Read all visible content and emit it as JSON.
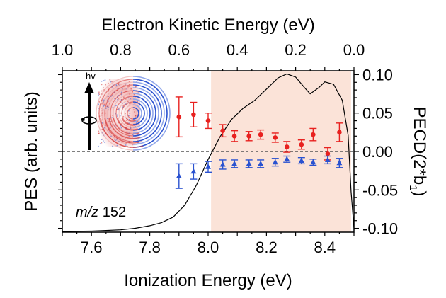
{
  "chart_data": {
    "type": "scatter",
    "title": "",
    "xlabel": "Ionization Energy (eV)",
    "top_xlabel": "Electron Kinetic Energy (eV)",
    "ylabel_left": "PES (arb. units)",
    "ylabel_right_main": "PECD(2*b",
    "ylabel_right_sub": "1",
    "ylabel_right_close": ")",
    "annotation_italic": "m/z",
    "annotation_value": "152",
    "hv_label": "hv",
    "xlim": [
      7.5,
      8.5
    ],
    "x_ticks": [
      "7.6",
      "7.8",
      "8.0",
      "8.2",
      "8.4"
    ],
    "x_tick_values": [
      7.6,
      7.8,
      8.0,
      8.2,
      8.4
    ],
    "top_x_ticks": [
      "1.0",
      "0.8",
      "0.6",
      "0.4",
      "0.2",
      "0.0"
    ],
    "top_x_tick_values": [
      1.0,
      0.8,
      0.6,
      0.4,
      0.2,
      0.0
    ],
    "y_right_lim": [
      -0.105,
      0.105
    ],
    "y_right_ticks": [
      "0.10",
      "0.05",
      "0.00",
      "-0.05",
      "-0.10"
    ],
    "y_right_tick_values": [
      0.1,
      0.05,
      0.0,
      -0.05,
      -0.1
    ],
    "shaded_region": [
      8.01,
      8.49
    ],
    "shade_color": "#fbe3d8",
    "series": [
      {
        "name": "PECD b1 (red)",
        "color": "#e8211f",
        "marker": "circle",
        "x": [
          7.9,
          7.95,
          8.0,
          8.05,
          8.09,
          8.14,
          8.18,
          8.23,
          8.27,
          8.32,
          8.36,
          8.41,
          8.45
        ],
        "y": [
          0.045,
          0.048,
          0.04,
          0.027,
          0.02,
          0.02,
          0.022,
          0.018,
          0.006,
          0.009,
          0.022,
          -0.003,
          0.025
        ],
        "err": [
          0.026,
          0.016,
          0.01,
          0.008,
          0.007,
          0.006,
          0.006,
          0.006,
          0.007,
          0.006,
          0.008,
          0.008,
          0.012
        ]
      },
      {
        "name": "PECD b1 (blue)",
        "color": "#2a52d0",
        "marker": "triangle",
        "x": [
          7.9,
          7.95,
          8.0,
          8.05,
          8.09,
          8.14,
          8.18,
          8.23,
          8.27,
          8.32,
          8.36,
          8.41,
          8.45
        ],
        "y": [
          -0.032,
          -0.026,
          -0.02,
          -0.017,
          -0.016,
          -0.016,
          -0.016,
          -0.014,
          -0.01,
          -0.012,
          -0.014,
          -0.011,
          -0.015
        ],
        "err": [
          0.016,
          0.01,
          0.007,
          0.006,
          0.005,
          0.005,
          0.005,
          0.005,
          0.004,
          0.004,
          0.004,
          0.005,
          0.006
        ]
      },
      {
        "name": "PES",
        "color": "#000000",
        "marker": "line",
        "axis": "left_arbitrary",
        "x": [
          7.5,
          7.6,
          7.7,
          7.75,
          7.8,
          7.84,
          7.88,
          7.92,
          7.96,
          8.0,
          8.04,
          8.08,
          8.12,
          8.16,
          8.2,
          8.24,
          8.27,
          8.3,
          8.33,
          8.35,
          8.38,
          8.4,
          8.43,
          8.46,
          8.48,
          8.49,
          8.5
        ],
        "y": [
          0.0,
          0.002,
          0.01,
          0.02,
          0.036,
          0.055,
          0.09,
          0.165,
          0.29,
          0.45,
          0.59,
          0.7,
          0.77,
          0.82,
          0.89,
          0.96,
          0.985,
          0.965,
          0.9,
          0.86,
          0.9,
          0.935,
          0.92,
          0.82,
          0.6,
          0.25,
          0.02
        ]
      }
    ]
  }
}
